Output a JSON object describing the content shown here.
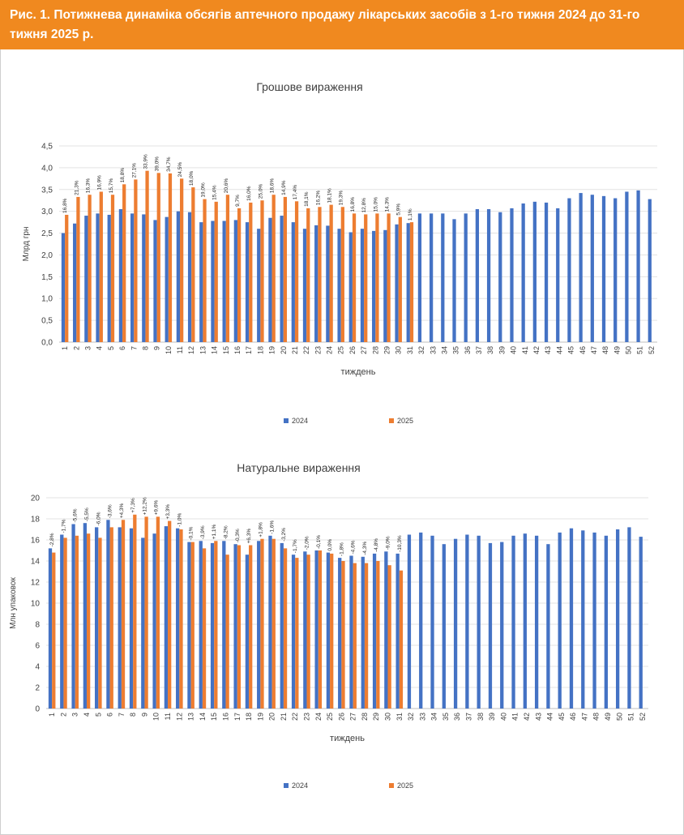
{
  "header": {
    "title": "Рис. 1. Потижнева динаміка обсягів аптечного продажу лікарських засобів з 1-го тижня 2024 до 31-го тижня 2025 р."
  },
  "colors": {
    "header_bg": "#F0891F",
    "series_2024": "#4472C4",
    "series_2025": "#ED7D31"
  },
  "chart_data": [
    {
      "type": "bar",
      "title": "Грошове вираження",
      "xlabel": "тиждень",
      "ylabel": "Млрд грн",
      "ylim": [
        0,
        4.5
      ],
      "yticks": [
        "0,0",
        "0,5",
        "1,0",
        "1,5",
        "2,0",
        "2,5",
        "3,0",
        "3,5",
        "4,0",
        "4,5"
      ],
      "grid": true,
      "legend": "bottom",
      "categories": [
        "1",
        "2",
        "3",
        "4",
        "5",
        "6",
        "7",
        "8",
        "9",
        "10",
        "11",
        "12",
        "13",
        "14",
        "15",
        "16",
        "17",
        "18",
        "19",
        "20",
        "21",
        "22",
        "23",
        "24",
        "25",
        "26",
        "27",
        "28",
        "29",
        "30",
        "31",
        "32",
        "33",
        "34",
        "35",
        "36",
        "37",
        "38",
        "39",
        "40",
        "41",
        "42",
        "43",
        "44",
        "45",
        "46",
        "47",
        "48",
        "49",
        "50",
        "51",
        "52"
      ],
      "series": [
        {
          "name": "2024",
          "values": [
            2.5,
            2.72,
            2.9,
            2.95,
            2.92,
            3.05,
            2.95,
            2.93,
            2.8,
            2.87,
            3.0,
            2.98,
            2.75,
            2.78,
            2.78,
            2.8,
            2.75,
            2.6,
            2.85,
            2.9,
            2.75,
            2.6,
            2.68,
            2.67,
            2.6,
            2.52,
            2.6,
            2.55,
            2.57,
            2.7,
            2.73,
            2.95,
            2.95,
            2.95,
            2.82,
            2.95,
            3.05,
            3.05,
            2.98,
            3.07,
            3.18,
            3.22,
            3.2,
            3.07,
            3.3,
            3.42,
            3.38,
            3.35,
            3.3,
            3.45,
            3.48,
            3.28
          ]
        },
        {
          "name": "2025",
          "values": [
            2.92,
            3.33,
            3.38,
            3.45,
            3.38,
            3.62,
            3.73,
            3.93,
            3.88,
            3.87,
            3.75,
            3.55,
            3.28,
            3.22,
            3.38,
            3.07,
            3.2,
            3.25,
            3.38,
            3.33,
            3.23,
            3.07,
            3.1,
            3.15,
            3.1,
            2.95,
            2.93,
            2.95,
            2.95,
            2.87,
            2.75
          ]
        }
      ],
      "labels": [
        "16,8%",
        "21,3%",
        "16,3%",
        "16,9%",
        "15,7%",
        "18,8%",
        "27,1%",
        "33,9%",
        "39,0%",
        "34,7%",
        "24,5%",
        "18,0%",
        "19,0%",
        "15,4%",
        "20,6%",
        "9,7%",
        "16,0%",
        "25,0%",
        "18,6%",
        "14,9%",
        "17,4%",
        "18,1%",
        "16,2%",
        "18,1%",
        "19,3%",
        "16,8%",
        "12,8%",
        "15,0%",
        "14,3%",
        "5,9%",
        "1,1%"
      ],
      "legend_entries": [
        "2024",
        "2025"
      ]
    },
    {
      "type": "bar",
      "title": "Натуральне вираження",
      "xlabel": "тиждень",
      "ylabel": "Млн упаковок",
      "ylim": [
        0,
        20
      ],
      "yticks": [
        "0",
        "2",
        "4",
        "6",
        "8",
        "10",
        "12",
        "14",
        "16",
        "18",
        "20"
      ],
      "grid": true,
      "legend": "bottom",
      "categories": [
        "1",
        "2",
        "3",
        "4",
        "5",
        "6",
        "7",
        "8",
        "9",
        "10",
        "11",
        "12",
        "13",
        "14",
        "15",
        "16",
        "17",
        "18",
        "19",
        "20",
        "21",
        "22",
        "23",
        "24",
        "25",
        "26",
        "27",
        "28",
        "29",
        "30",
        "31",
        "32",
        "33",
        "34",
        "35",
        "36",
        "37",
        "38",
        "39",
        "40",
        "41",
        "42",
        "43",
        "44",
        "45",
        "46",
        "47",
        "48",
        "49",
        "50",
        "51",
        "52"
      ],
      "series": [
        {
          "name": "2024",
          "values": [
            15.2,
            16.5,
            17.5,
            17.6,
            17.2,
            17.9,
            17.2,
            17.1,
            16.2,
            16.6,
            17.3,
            17.1,
            15.8,
            15.9,
            15.7,
            15.9,
            15.6,
            14.6,
            15.9,
            16.4,
            15.7,
            14.6,
            14.9,
            15.0,
            14.8,
            14.3,
            14.5,
            14.4,
            14.7,
            14.9,
            14.7,
            16.5,
            16.7,
            16.4,
            15.6,
            16.1,
            16.5,
            16.4,
            15.7,
            15.8,
            16.4,
            16.6,
            16.4,
            15.6,
            16.7,
            17.1,
            16.9,
            16.7,
            16.4,
            17.0,
            17.2,
            16.3
          ]
        },
        {
          "name": "2025",
          "values": [
            14.8,
            16.2,
            16.4,
            16.6,
            16.2,
            17.2,
            17.9,
            18.4,
            18.2,
            18.2,
            17.8,
            17.0,
            15.8,
            15.2,
            15.9,
            14.6,
            15.5,
            15.5,
            16.1,
            16.1,
            15.2,
            14.3,
            14.6,
            15.0,
            14.7,
            14.0,
            13.8,
            13.8,
            14.0,
            13.6,
            13.1
          ]
        }
      ],
      "labels": [
        "-2,8%",
        "-1,7%",
        "-5,6%",
        "-5,5%",
        "-6,0%",
        "-3,6%",
        "+4,3%",
        "+7,3%",
        "+12,2%",
        "+9,6%",
        "+3,3%",
        "-1,0%",
        "-0,1%",
        "-3,9%",
        "+1,1%",
        "-8,2%",
        "-0,3%",
        "+6,3%",
        "+1,8%",
        "-1,6%",
        "-3,2%",
        "-1,7%",
        "-2,0%",
        "-0,1%",
        "0,0%",
        "-1,8%",
        "-4,6%",
        "-4,3%",
        "-4,8%",
        "-9,0%",
        "-10,3%"
      ],
      "legend_entries": [
        "2024",
        "2025"
      ]
    }
  ]
}
